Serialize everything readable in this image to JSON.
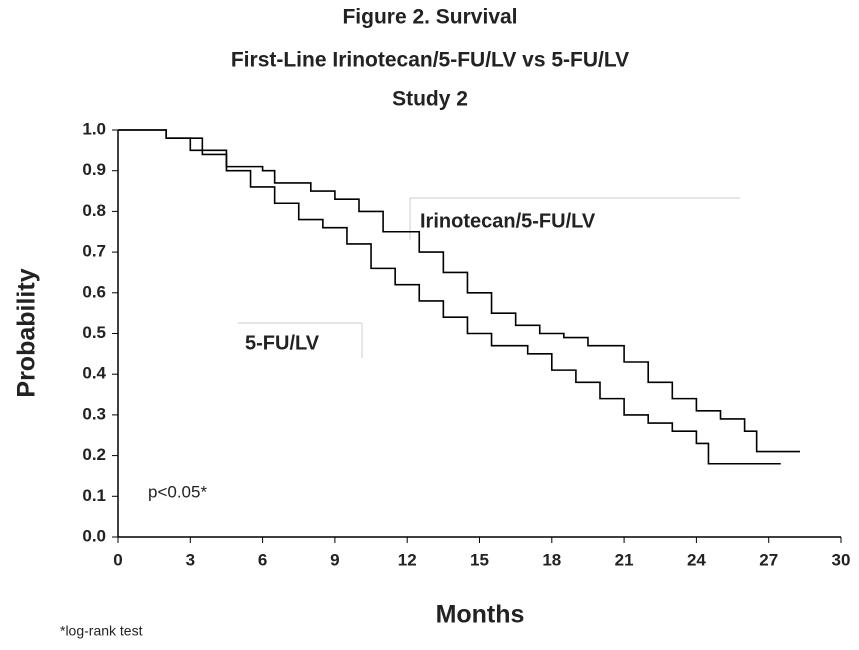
{
  "chart_data": {
    "type": "step-line",
    "title": "Figure 2. Survival",
    "subtitle": [
      "First-Line Irinotecan/5-FU/LV vs 5-FU/LV",
      "Study 2"
    ],
    "x_label": "Months",
    "y_label": "Probability",
    "step": "post",
    "series": [
      {
        "name": "Irinotecan/5-FU/LV",
        "color": "#000000",
        "x": [
          0,
          2,
          3,
          4.5,
          6,
          6.5,
          8,
          9,
          10,
          11,
          12.5,
          13.5,
          14.5,
          15.5,
          16.5,
          17.5,
          18.5,
          19.5,
          21,
          22,
          23,
          24,
          25,
          26,
          26.5,
          28.3
        ],
        "values": [
          1.0,
          0.98,
          0.95,
          0.91,
          0.9,
          0.87,
          0.85,
          0.83,
          0.8,
          0.75,
          0.7,
          0.65,
          0.6,
          0.55,
          0.52,
          0.5,
          0.49,
          0.47,
          0.43,
          0.38,
          0.34,
          0.31,
          0.29,
          0.26,
          0.21,
          0.21
        ]
      },
      {
        "name": "5-FU/LV",
        "color": "#000000",
        "x": [
          0,
          2,
          3.5,
          4.5,
          5.5,
          6.5,
          7.5,
          8.5,
          9.5,
          10.5,
          11.5,
          12.5,
          13.5,
          14.5,
          15.5,
          17,
          18,
          19,
          20,
          21,
          22,
          23,
          24,
          24.5,
          27.5
        ],
        "values": [
          1.0,
          0.98,
          0.94,
          0.9,
          0.86,
          0.82,
          0.78,
          0.76,
          0.72,
          0.66,
          0.62,
          0.58,
          0.54,
          0.5,
          0.47,
          0.45,
          0.41,
          0.38,
          0.34,
          0.3,
          0.28,
          0.26,
          0.23,
          0.18,
          0.18
        ]
      }
    ],
    "xlim": [
      0,
      30
    ],
    "xticks": [
      0,
      3,
      6,
      9,
      12,
      15,
      18,
      21,
      24,
      27,
      30
    ],
    "ylim": [
      0,
      1
    ],
    "yticks": [
      {
        "value": 0,
        "label": "0.0"
      },
      0.1,
      0.2,
      0.3,
      0.4,
      0.5,
      0.6,
      0.7,
      0.8,
      0.9,
      {
        "value": 1,
        "label": "1.0"
      }
    ],
    "grid": false,
    "annotations": [
      "p<0.05*",
      "*log-rank test"
    ]
  }
}
